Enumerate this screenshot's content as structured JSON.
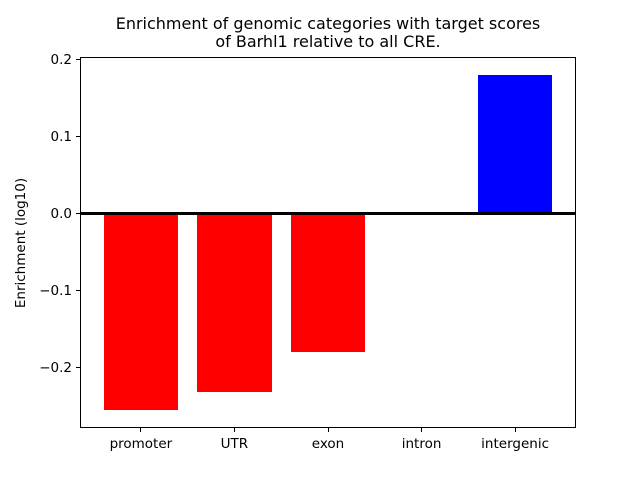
{
  "figure": {
    "title_line1": "Enrichment of genomic categories with target scores",
    "title_line2": "of Barhl1 relative to all CRE.",
    "ylabel": "Enrichment (log10)"
  },
  "chart_data": {
    "type": "bar",
    "title": "Enrichment of genomic categories with target scores\nof Barhl1 relative to all CRE.",
    "xlabel": "",
    "ylabel": "Enrichment (log10)",
    "categories": [
      "promoter",
      "UTR",
      "exon",
      "intron",
      "intergenic"
    ],
    "values": [
      -0.255,
      -0.232,
      -0.18,
      0.0,
      0.18
    ],
    "bar_colors": [
      "#ff0000",
      "#ff0000",
      "#ff0000",
      "#ff0000",
      "#0000ff"
    ],
    "negative_color": "#ff0000",
    "positive_color": "#0000ff",
    "zero_line_color": "#000000",
    "yticks": [
      0.2,
      0.1,
      0.0,
      -0.1,
      -0.2
    ],
    "ytick_labels": [
      "0.2",
      "0.1",
      "0.0",
      "−0.1",
      "−0.2"
    ],
    "ylim": [
      -0.277,
      0.202
    ],
    "xlim": [
      -0.64,
      4.64
    ],
    "bar_width": 0.8,
    "grid": false,
    "legend": null,
    "zero_line": true
  }
}
